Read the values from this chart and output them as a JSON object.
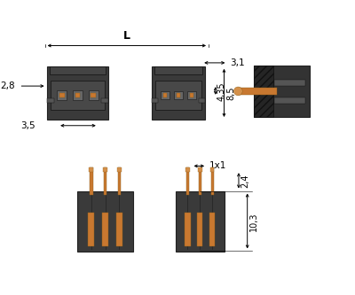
{
  "bg_color": "#f0f0f0",
  "dark_color": "#3a3a3a",
  "darker_color": "#2a2a2a",
  "copper_color": "#c87830",
  "light_gray": "#888888",
  "mid_gray": "#555555",
  "dim_labels": {
    "L": "L",
    "2_8": "2,8",
    "3_5": "3,5",
    "3_1": "3,1",
    "4_35": "4,35",
    "8_5": "8,5",
    "1x1": "1x1",
    "2_4": "2,4",
    "10_3": "10,3"
  }
}
